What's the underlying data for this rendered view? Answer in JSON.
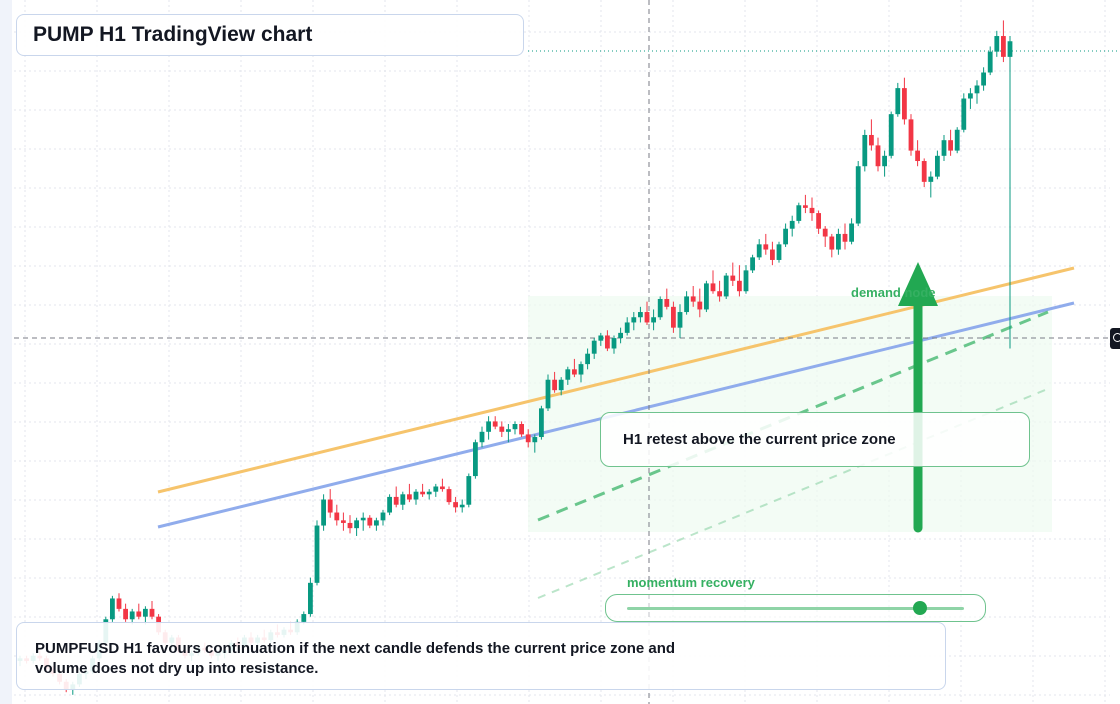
{
  "header": {
    "title": "PUMP H1 TradingView chart"
  },
  "annotations": {
    "retest_note": "H1 retest above the current price zone",
    "demand_label": "demand node",
    "momentum_label": "momentum recovery",
    "momentum_progress": 0.87
  },
  "summary": {
    "text": "PUMPFUSD H1 favours continuation if the next candle defends the current price zone and volume does not dry up into resistance."
  },
  "colors": {
    "up": "#089981",
    "down": "#f23645",
    "accent_green": "#22a852",
    "trend_orange": "#f6c46c",
    "trend_blue": "#90acec",
    "grid": "#e3e6ec"
  },
  "icons": {
    "price_marker": "target-icon",
    "direction": "up-arrow-icon"
  },
  "chart_data": {
    "type": "candlestick",
    "symbol": "PUMPFUSD",
    "timeframe": "H1",
    "grid": true,
    "candles": [
      [
        0.7,
        0.72,
        0.68,
        0.71
      ],
      [
        0.71,
        0.72,
        0.69,
        0.7
      ],
      [
        0.7,
        0.73,
        0.69,
        0.72
      ],
      [
        0.72,
        0.74,
        0.7,
        0.71
      ],
      [
        0.71,
        0.72,
        0.66,
        0.67
      ],
      [
        0.67,
        0.68,
        0.64,
        0.65
      ],
      [
        0.65,
        0.66,
        0.61,
        0.62
      ],
      [
        0.62,
        0.63,
        0.58,
        0.59
      ],
      [
        0.59,
        0.62,
        0.57,
        0.61
      ],
      [
        0.61,
        0.66,
        0.6,
        0.65
      ],
      [
        0.65,
        0.67,
        0.63,
        0.66
      ],
      [
        0.66,
        0.72,
        0.65,
        0.71
      ],
      [
        0.71,
        0.78,
        0.7,
        0.77
      ],
      [
        0.77,
        0.87,
        0.76,
        0.86
      ],
      [
        0.86,
        0.95,
        0.85,
        0.94
      ],
      [
        0.94,
        0.96,
        0.89,
        0.9
      ],
      [
        0.9,
        0.92,
        0.85,
        0.86
      ],
      [
        0.86,
        0.9,
        0.84,
        0.89
      ],
      [
        0.89,
        0.92,
        0.86,
        0.87
      ],
      [
        0.87,
        0.91,
        0.84,
        0.9
      ],
      [
        0.9,
        0.93,
        0.86,
        0.87
      ],
      [
        0.87,
        0.88,
        0.8,
        0.81
      ],
      [
        0.81,
        0.82,
        0.76,
        0.77
      ],
      [
        0.77,
        0.8,
        0.75,
        0.79
      ],
      [
        0.79,
        0.8,
        0.73,
        0.74
      ],
      [
        0.74,
        0.76,
        0.71,
        0.72
      ],
      [
        0.72,
        0.74,
        0.7,
        0.73
      ],
      [
        0.73,
        0.76,
        0.72,
        0.75
      ],
      [
        0.75,
        0.77,
        0.73,
        0.74
      ],
      [
        0.74,
        0.75,
        0.71,
        0.72
      ],
      [
        0.72,
        0.74,
        0.7,
        0.73
      ],
      [
        0.73,
        0.75,
        0.71,
        0.74
      ],
      [
        0.74,
        0.78,
        0.73,
        0.77
      ],
      [
        0.77,
        0.79,
        0.75,
        0.76
      ],
      [
        0.76,
        0.8,
        0.75,
        0.79
      ],
      [
        0.79,
        0.81,
        0.76,
        0.77
      ],
      [
        0.77,
        0.8,
        0.76,
        0.79
      ],
      [
        0.79,
        0.82,
        0.77,
        0.78
      ],
      [
        0.78,
        0.82,
        0.77,
        0.81
      ],
      [
        0.81,
        0.84,
        0.79,
        0.8
      ],
      [
        0.8,
        0.83,
        0.79,
        0.82
      ],
      [
        0.82,
        0.85,
        0.8,
        0.81
      ],
      [
        0.81,
        0.86,
        0.8,
        0.85
      ],
      [
        0.85,
        0.89,
        0.84,
        0.88
      ],
      [
        0.88,
        1.02,
        0.87,
        1.0
      ],
      [
        1.0,
        1.24,
        0.99,
        1.22
      ],
      [
        1.22,
        1.34,
        1.2,
        1.32
      ],
      [
        1.32,
        1.36,
        1.25,
        1.27
      ],
      [
        1.27,
        1.3,
        1.22,
        1.24
      ],
      [
        1.24,
        1.27,
        1.2,
        1.23
      ],
      [
        1.23,
        1.26,
        1.19,
        1.21
      ],
      [
        1.21,
        1.25,
        1.18,
        1.24
      ],
      [
        1.24,
        1.27,
        1.2,
        1.25
      ],
      [
        1.25,
        1.26,
        1.21,
        1.22
      ],
      [
        1.22,
        1.25,
        1.2,
        1.24
      ],
      [
        1.24,
        1.28,
        1.22,
        1.27
      ],
      [
        1.27,
        1.34,
        1.26,
        1.33
      ],
      [
        1.33,
        1.37,
        1.29,
        1.3
      ],
      [
        1.3,
        1.35,
        1.28,
        1.34
      ],
      [
        1.34,
        1.38,
        1.31,
        1.32
      ],
      [
        1.32,
        1.36,
        1.3,
        1.35
      ],
      [
        1.35,
        1.38,
        1.33,
        1.34
      ],
      [
        1.34,
        1.36,
        1.32,
        1.35
      ],
      [
        1.35,
        1.38,
        1.33,
        1.37
      ],
      [
        1.37,
        1.4,
        1.35,
        1.36
      ],
      [
        1.36,
        1.37,
        1.3,
        1.31
      ],
      [
        1.31,
        1.33,
        1.27,
        1.29
      ],
      [
        1.29,
        1.32,
        1.27,
        1.3
      ],
      [
        1.3,
        1.42,
        1.29,
        1.41
      ],
      [
        1.41,
        1.55,
        1.4,
        1.54
      ],
      [
        1.54,
        1.6,
        1.52,
        1.58
      ],
      [
        1.58,
        1.64,
        1.55,
        1.62
      ],
      [
        1.62,
        1.64,
        1.59,
        1.6
      ],
      [
        1.6,
        1.62,
        1.56,
        1.58
      ],
      [
        1.58,
        1.61,
        1.54,
        1.59
      ],
      [
        1.59,
        1.62,
        1.57,
        1.61
      ],
      [
        1.61,
        1.62,
        1.56,
        1.57
      ],
      [
        1.57,
        1.59,
        1.52,
        1.54
      ],
      [
        1.54,
        1.57,
        1.5,
        1.56
      ],
      [
        1.56,
        1.68,
        1.55,
        1.67
      ],
      [
        1.67,
        1.8,
        1.66,
        1.78
      ],
      [
        1.78,
        1.81,
        1.73,
        1.74
      ],
      [
        1.74,
        1.79,
        1.72,
        1.78
      ],
      [
        1.78,
        1.83,
        1.76,
        1.82
      ],
      [
        1.82,
        1.86,
        1.79,
        1.8
      ],
      [
        1.8,
        1.85,
        1.77,
        1.84
      ],
      [
        1.84,
        1.9,
        1.82,
        1.88
      ],
      [
        1.88,
        1.94,
        1.86,
        1.93
      ],
      [
        1.93,
        1.96,
        1.91,
        1.95
      ],
      [
        1.95,
        1.97,
        1.89,
        1.9
      ],
      [
        1.9,
        1.95,
        1.88,
        1.94
      ],
      [
        1.94,
        1.98,
        1.92,
        1.96
      ],
      [
        1.96,
        2.02,
        1.95,
        2.0
      ],
      [
        2.0,
        2.04,
        1.97,
        2.02
      ],
      [
        2.02,
        2.06,
        2.0,
        2.04
      ],
      [
        2.04,
        2.08,
        1.99,
        2.0
      ],
      [
        2.0,
        2.05,
        1.97,
        2.02
      ],
      [
        2.02,
        2.1,
        2.01,
        2.09
      ],
      [
        2.09,
        2.13,
        2.05,
        2.06
      ],
      [
        2.06,
        2.08,
        1.96,
        1.98
      ],
      [
        1.98,
        2.07,
        1.94,
        2.04
      ],
      [
        2.04,
        2.12,
        2.03,
        2.1
      ],
      [
        2.1,
        2.14,
        2.06,
        2.08
      ],
      [
        2.08,
        2.13,
        2.02,
        2.05
      ],
      [
        2.05,
        2.16,
        2.04,
        2.15
      ],
      [
        2.15,
        2.2,
        2.11,
        2.12
      ],
      [
        2.12,
        2.16,
        2.08,
        2.1
      ],
      [
        2.1,
        2.19,
        2.09,
        2.18
      ],
      [
        2.18,
        2.23,
        2.14,
        2.16
      ],
      [
        2.16,
        2.22,
        2.1,
        2.12
      ],
      [
        2.12,
        2.22,
        2.11,
        2.2
      ],
      [
        2.2,
        2.26,
        2.19,
        2.25
      ],
      [
        2.25,
        2.32,
        2.24,
        2.3
      ],
      [
        2.3,
        2.34,
        2.26,
        2.28
      ],
      [
        2.28,
        2.31,
        2.22,
        2.24
      ],
      [
        2.24,
        2.31,
        2.23,
        2.3
      ],
      [
        2.3,
        2.38,
        2.29,
        2.36
      ],
      [
        2.36,
        2.41,
        2.33,
        2.39
      ],
      [
        2.39,
        2.46,
        2.38,
        2.45
      ],
      [
        2.45,
        2.49,
        2.42,
        2.44
      ],
      [
        2.44,
        2.48,
        2.39,
        2.42
      ],
      [
        2.42,
        2.43,
        2.34,
        2.36
      ],
      [
        2.36,
        2.37,
        2.29,
        2.33
      ],
      [
        2.33,
        2.34,
        2.25,
        2.28
      ],
      [
        2.28,
        2.36,
        2.26,
        2.34
      ],
      [
        2.34,
        2.38,
        2.28,
        2.31
      ],
      [
        2.31,
        2.4,
        2.3,
        2.38
      ],
      [
        2.38,
        2.62,
        2.37,
        2.6
      ],
      [
        2.6,
        2.74,
        2.58,
        2.72
      ],
      [
        2.72,
        2.78,
        2.66,
        2.68
      ],
      [
        2.68,
        2.71,
        2.58,
        2.6
      ],
      [
        2.6,
        2.66,
        2.56,
        2.64
      ],
      [
        2.64,
        2.81,
        2.63,
        2.8
      ],
      [
        2.8,
        2.92,
        2.79,
        2.9
      ],
      [
        2.9,
        2.94,
        2.76,
        2.78
      ],
      [
        2.78,
        2.8,
        2.64,
        2.66
      ],
      [
        2.66,
        2.7,
        2.6,
        2.62
      ],
      [
        2.62,
        2.63,
        2.52,
        2.54
      ],
      [
        2.54,
        2.58,
        2.48,
        2.56
      ],
      [
        2.56,
        2.66,
        2.55,
        2.64
      ],
      [
        2.64,
        2.72,
        2.62,
        2.7
      ],
      [
        2.7,
        2.74,
        2.64,
        2.66
      ],
      [
        2.66,
        2.75,
        2.65,
        2.74
      ],
      [
        2.74,
        2.88,
        2.73,
        2.86
      ],
      [
        2.86,
        2.9,
        2.82,
        2.88
      ],
      [
        2.88,
        2.93,
        2.84,
        2.91
      ],
      [
        2.91,
        2.98,
        2.89,
        2.96
      ],
      [
        2.96,
        3.06,
        2.95,
        3.04
      ],
      [
        3.04,
        3.12,
        3.02,
        3.1
      ],
      [
        3.1,
        3.16,
        3.0,
        3.02
      ],
      [
        3.02,
        3.1,
        1.9,
        3.08
      ]
    ],
    "trendlines": [
      {
        "name": "upper",
        "from": [
          0.56,
          1.5
        ],
        "to": [
          2.0,
          2.18
        ]
      },
      {
        "name": "lower",
        "from": [
          0.56,
          1.32
        ],
        "to": [
          2.0,
          2.0
        ]
      }
    ]
  }
}
